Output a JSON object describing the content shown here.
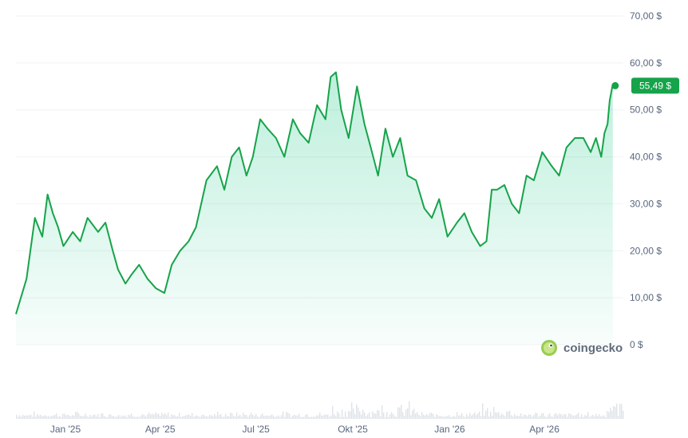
{
  "chart_data": {
    "type": "area",
    "x_tick_labels": [
      "Jan '25",
      "Apr '25",
      "Jul '25",
      "Okt '25",
      "Jan '26",
      "Apr '26"
    ],
    "y_tick_labels": [
      "0 $",
      "10,00 $",
      "20,00 $",
      "30,00 $",
      "40,00 $",
      "50,00 $",
      "60,00 $",
      "70,00 $"
    ],
    "ylim": [
      0,
      70
    ],
    "x_range": [
      "2024-11-15",
      "2026-06-15"
    ],
    "grid": true,
    "current_price_label": "55,49 $",
    "current_price": 55.49,
    "series": [
      {
        "x": [
          "2024-11-15",
          "2024-11-25",
          "2024-12-03",
          "2024-12-10",
          "2024-12-15",
          "2024-12-20",
          "2024-12-25",
          "2024-12-30",
          "2025-01-08",
          "2025-01-15",
          "2025-01-22",
          "2025-02-01",
          "2025-02-08",
          "2025-02-15",
          "2025-02-20",
          "2025-02-27",
          "2025-03-05",
          "2025-03-12",
          "2025-03-20",
          "2025-03-28",
          "2025-04-05",
          "2025-04-12",
          "2025-04-20",
          "2025-04-28",
          "2025-05-05",
          "2025-05-15",
          "2025-05-25",
          "2025-06-01",
          "2025-06-08",
          "2025-06-15",
          "2025-06-22",
          "2025-06-28",
          "2025-07-05",
          "2025-07-12",
          "2025-07-20",
          "2025-07-28",
          "2025-08-05",
          "2025-08-12",
          "2025-08-20",
          "2025-08-28",
          "2025-09-05",
          "2025-09-10",
          "2025-09-15",
          "2025-09-20",
          "2025-09-27",
          "2025-10-05",
          "2025-10-12",
          "2025-10-18",
          "2025-10-25",
          "2025-11-01",
          "2025-11-08",
          "2025-11-15",
          "2025-11-22",
          "2025-11-30",
          "2025-12-08",
          "2025-12-15",
          "2025-12-22",
          "2025-12-30",
          "2026-01-08",
          "2026-01-15",
          "2026-01-22",
          "2026-01-30",
          "2026-02-05",
          "2026-02-10",
          "2026-02-15",
          "2026-02-22",
          "2026-03-01",
          "2026-03-08",
          "2026-03-15",
          "2026-03-22",
          "2026-03-30",
          "2026-04-08",
          "2026-04-15",
          "2026-04-22",
          "2026-04-30",
          "2026-05-08",
          "2026-05-15",
          "2026-05-20",
          "2026-05-25",
          "2026-05-28",
          "2026-05-31",
          "2026-06-02",
          "2026-06-05"
        ],
        "y": [
          6.5,
          14,
          27,
          23,
          32,
          28,
          25,
          21,
          24,
          22,
          27,
          24,
          26,
          20,
          16,
          13,
          15,
          17,
          14,
          12,
          11,
          17,
          20,
          22,
          25,
          35,
          38,
          33,
          40,
          42,
          36,
          40,
          48,
          46,
          44,
          40,
          48,
          45,
          43,
          51,
          48,
          57,
          58,
          50,
          44,
          55,
          47,
          42,
          36,
          46,
          40,
          44,
          36,
          35,
          29,
          27,
          31,
          23,
          26,
          28,
          24,
          21,
          22,
          33,
          33,
          34,
          30,
          28,
          36,
          35,
          41,
          38,
          36,
          42,
          44,
          44,
          41,
          44,
          40,
          45,
          47,
          52,
          55.49
        ]
      }
    ]
  },
  "watermark": {
    "brand": "coingecko"
  }
}
